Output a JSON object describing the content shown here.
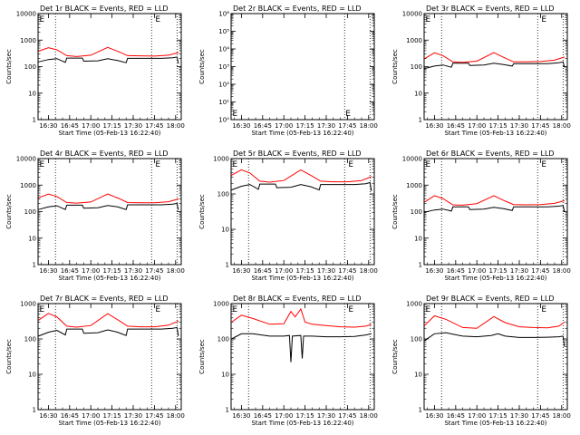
{
  "figure": {
    "xlabel": "Start Time (05-Feb-13 16:22:40)",
    "ylabel": "Counts/sec",
    "x_tick_labels": [
      "16:30",
      "16:45",
      "17:00",
      "17:15",
      "17:30",
      "17:45",
      "18:00"
    ],
    "colors": {
      "events": "#000000",
      "lld": "#ff0000",
      "frame": "#000000"
    }
  },
  "chart_data": [
    {
      "type": "line",
      "title": "Det 1r BLACK = Events, RED = LLD",
      "xlim": [
        "16:22:40",
        "18:04:00"
      ],
      "y_scale": "log",
      "ylim": [
        1,
        10000
      ],
      "y_tick_labels": [
        "1",
        "10",
        "100",
        "1000",
        "10000"
      ],
      "vlines": [
        "16:35",
        "17:43",
        "18:01"
      ],
      "markers": [
        {
          "x": "16:23",
          "label": "E"
        },
        {
          "x": "17:45",
          "label": "E"
        }
      ],
      "series": [
        {
          "name": "Events",
          "x": [
            "16:23",
            "16:30",
            "16:36",
            "16:42",
            "16:43",
            "16:54",
            "16:55",
            "17:05",
            "17:12",
            "17:19",
            "17:25",
            "17:26",
            "17:40",
            "17:50",
            "17:58",
            "18:01",
            "18:02"
          ],
          "values": [
            150,
            185,
            200,
            145,
            210,
            210,
            160,
            165,
            200,
            170,
            140,
            205,
            205,
            205,
            215,
            230,
            130
          ]
        },
        {
          "name": "LLD",
          "x": [
            "16:23",
            "16:30",
            "16:36",
            "16:43",
            "16:50",
            "17:00",
            "17:12",
            "17:20",
            "17:26",
            "17:35",
            "17:45",
            "17:55",
            "18:02"
          ],
          "values": [
            380,
            520,
            430,
            260,
            240,
            270,
            530,
            360,
            260,
            255,
            250,
            270,
            340
          ]
        }
      ]
    },
    {
      "type": "line",
      "title": "Det 2r BLACK = Events, RED = LLD",
      "xlim": [
        "16:22:40",
        "18:04:00"
      ],
      "y_scale": "log",
      "ylim": [
        1,
        1000000
      ],
      "y_tick_labels": [
        "10⁰",
        "10¹",
        "10²",
        "10³",
        "10⁴",
        "10⁵",
        "10⁶"
      ],
      "vlines": [
        "17:43",
        "18:01"
      ],
      "markers": [
        {
          "x": "16:23",
          "label": "E"
        },
        {
          "x": "17:43",
          "label": "E"
        }
      ],
      "series": []
    },
    {
      "type": "line",
      "title": "Det 3r BLACK = Events, RED = LLD",
      "xlim": [
        "16:22:40",
        "18:04:00"
      ],
      "y_scale": "log",
      "ylim": [
        1,
        10000
      ],
      "y_tick_labels": [
        "1",
        "10",
        "100",
        "1000",
        "10000"
      ],
      "vlines": [
        "16:35",
        "17:43",
        "18:01"
      ],
      "markers": [
        {
          "x": "16:23",
          "label": "E"
        },
        {
          "x": "17:45",
          "label": "E"
        }
      ],
      "series": [
        {
          "name": "Events",
          "x": [
            "16:23",
            "16:30",
            "16:36",
            "16:42",
            "16:43",
            "16:54",
            "16:55",
            "17:05",
            "17:12",
            "17:19",
            "17:25",
            "17:26",
            "17:40",
            "17:50",
            "17:58",
            "18:01",
            "18:02"
          ],
          "values": [
            85,
            105,
            115,
            95,
            135,
            135,
            110,
            115,
            135,
            120,
            105,
            130,
            130,
            130,
            140,
            150,
            95
          ]
        },
        {
          "name": "LLD",
          "x": [
            "16:23",
            "16:30",
            "16:36",
            "16:43",
            "16:50",
            "17:00",
            "17:12",
            "17:20",
            "17:26",
            "17:35",
            "17:45",
            "17:55",
            "18:02"
          ],
          "values": [
            200,
            330,
            260,
            150,
            145,
            160,
            340,
            210,
            150,
            150,
            155,
            175,
            230
          ]
        }
      ]
    },
    {
      "type": "line",
      "title": "Det 4r BLACK = Events, RED = LLD",
      "xlim": [
        "16:22:40",
        "18:04:00"
      ],
      "y_scale": "log",
      "ylim": [
        1,
        10000
      ],
      "y_tick_labels": [
        "1",
        "10",
        "100",
        "1000",
        "10000"
      ],
      "vlines": [
        "16:35",
        "17:43",
        "18:01"
      ],
      "markers": [
        {
          "x": "16:23",
          "label": "E"
        },
        {
          "x": "17:45",
          "label": "E"
        }
      ],
      "series": [
        {
          "name": "Events",
          "x": [
            "16:23",
            "16:30",
            "16:36",
            "16:42",
            "16:43",
            "16:54",
            "16:55",
            "17:05",
            "17:12",
            "17:19",
            "17:25",
            "17:26",
            "17:40",
            "17:50",
            "17:58",
            "18:01",
            "18:02"
          ],
          "values": [
            120,
            150,
            165,
            120,
            175,
            175,
            135,
            140,
            170,
            150,
            120,
            180,
            180,
            180,
            190,
            205,
            115
          ]
        },
        {
          "name": "LLD",
          "x": [
            "16:23",
            "16:30",
            "16:36",
            "16:43",
            "16:50",
            "17:00",
            "17:12",
            "17:20",
            "17:26",
            "17:35",
            "17:45",
            "17:55",
            "18:02"
          ],
          "values": [
            330,
            460,
            370,
            220,
            210,
            230,
            460,
            310,
            220,
            215,
            215,
            235,
            300
          ]
        }
      ]
    },
    {
      "type": "line",
      "title": "Det 5r BLACK = Events, RED = LLD",
      "xlim": [
        "16:22:40",
        "18:04:00"
      ],
      "y_scale": "log",
      "ylim": [
        1,
        1000
      ],
      "y_tick_labels": [
        "1",
        "10",
        "100",
        "1000"
      ],
      "vlines": [
        "16:35",
        "17:43",
        "18:01"
      ],
      "markers": [
        {
          "x": "16:23",
          "label": "E"
        },
        {
          "x": "17:45",
          "label": "E"
        }
      ],
      "series": [
        {
          "name": "Events",
          "x": [
            "16:23",
            "16:30",
            "16:36",
            "16:42",
            "16:43",
            "16:54",
            "16:55",
            "17:05",
            "17:12",
            "17:19",
            "17:25",
            "17:26",
            "17:40",
            "17:50",
            "17:58",
            "18:01",
            "18:02"
          ],
          "values": [
            130,
            165,
            185,
            135,
            190,
            190,
            150,
            155,
            185,
            160,
            130,
            185,
            185,
            185,
            195,
            210,
            120
          ]
        },
        {
          "name": "LLD",
          "x": [
            "16:23",
            "16:30",
            "16:36",
            "16:43",
            "16:50",
            "17:00",
            "17:12",
            "17:20",
            "17:26",
            "17:35",
            "17:45",
            "17:55",
            "18:02"
          ],
          "values": [
            340,
            480,
            390,
            230,
            215,
            240,
            480,
            320,
            230,
            220,
            220,
            240,
            310
          ]
        }
      ]
    },
    {
      "type": "line",
      "title": "Det 6r BLACK = Events, RED = LLD",
      "xlim": [
        "16:22:40",
        "18:04:00"
      ],
      "y_scale": "log",
      "ylim": [
        1,
        10000
      ],
      "y_tick_labels": [
        "1",
        "10",
        "100",
        "1000",
        "10000"
      ],
      "vlines": [
        "16:35",
        "17:43",
        "18:01"
      ],
      "markers": [
        {
          "x": "16:23",
          "label": "E"
        },
        {
          "x": "17:45",
          "label": "E"
        }
      ],
      "series": [
        {
          "name": "Events",
          "x": [
            "16:23",
            "16:30",
            "16:36",
            "16:42",
            "16:43",
            "16:54",
            "16:55",
            "17:05",
            "17:12",
            "17:19",
            "17:25",
            "17:26",
            "17:40",
            "17:50",
            "17:58",
            "18:01",
            "18:02"
          ],
          "values": [
            95,
            115,
            125,
            105,
            150,
            150,
            120,
            125,
            145,
            130,
            110,
            150,
            150,
            150,
            160,
            170,
            100
          ]
        },
        {
          "name": "LLD",
          "x": [
            "16:23",
            "16:30",
            "16:36",
            "16:43",
            "16:50",
            "17:00",
            "17:12",
            "17:20",
            "17:26",
            "17:35",
            "17:45",
            "17:55",
            "18:02"
          ],
          "values": [
            230,
            400,
            310,
            180,
            175,
            200,
            400,
            250,
            185,
            180,
            185,
            205,
            260
          ]
        }
      ]
    },
    {
      "type": "line",
      "title": "Det 7r BLACK = Events, RED = LLD",
      "xlim": [
        "16:22:40",
        "18:04:00"
      ],
      "y_scale": "log",
      "ylim": [
        1,
        1000
      ],
      "y_tick_labels": [
        "1",
        "10",
        "100",
        "1000"
      ],
      "vlines": [
        "16:35",
        "17:43",
        "18:01"
      ],
      "markers": [
        {
          "x": "16:23",
          "label": "E"
        },
        {
          "x": "17:45",
          "label": "E"
        }
      ],
      "series": [
        {
          "name": "Events",
          "x": [
            "16:23",
            "16:30",
            "16:36",
            "16:42",
            "16:43",
            "16:54",
            "16:55",
            "17:05",
            "17:12",
            "17:19",
            "17:25",
            "17:26",
            "17:40",
            "17:50",
            "17:58",
            "18:01",
            "18:02"
          ],
          "values": [
            120,
            155,
            175,
            130,
            190,
            190,
            145,
            150,
            180,
            155,
            125,
            190,
            190,
            190,
            200,
            210,
            120
          ]
        },
        {
          "name": "LLD",
          "x": [
            "16:23",
            "16:30",
            "16:36",
            "16:43",
            "16:50",
            "17:00",
            "17:12",
            "17:20",
            "17:26",
            "17:35",
            "17:45",
            "17:55",
            "18:02"
          ],
          "values": [
            340,
            530,
            420,
            230,
            215,
            240,
            520,
            330,
            230,
            220,
            220,
            245,
            320
          ]
        }
      ]
    },
    {
      "type": "line",
      "title": "Det 8r BLACK = Events, RED = LLD",
      "xlim": [
        "16:22:40",
        "18:04:00"
      ],
      "y_scale": "log",
      "ylim": [
        1,
        1000
      ],
      "y_tick_labels": [
        "1",
        "10",
        "100",
        "1000"
      ],
      "vlines": [
        "16:35",
        "17:43",
        "18:01"
      ],
      "markers": [
        {
          "x": "16:23",
          "label": "E"
        },
        {
          "x": "17:45",
          "label": "E"
        }
      ],
      "series": [
        {
          "name": "Events",
          "x": [
            "16:23",
            "16:30",
            "16:38",
            "16:50",
            "17:00",
            "17:04",
            "17:05",
            "17:06",
            "17:12",
            "17:13",
            "17:14",
            "17:20",
            "17:30",
            "17:40",
            "17:50",
            "17:58",
            "18:02"
          ],
          "values": [
            100,
            140,
            140,
            120,
            120,
            125,
            22,
            120,
            125,
            28,
            120,
            120,
            115,
            115,
            118,
            130,
            140
          ]
        },
        {
          "name": "LLD",
          "x": [
            "16:23",
            "16:30",
            "16:38",
            "16:50",
            "17:00",
            "17:05",
            "17:08",
            "17:12",
            "17:15",
            "17:20",
            "17:30",
            "17:40",
            "17:50",
            "17:58",
            "18:02"
          ],
          "values": [
            300,
            470,
            380,
            260,
            270,
            600,
            420,
            700,
            300,
            260,
            240,
            220,
            215,
            230,
            260
          ]
        }
      ]
    },
    {
      "type": "line",
      "title": "Det 9r BLACK = Events, RED = LLD",
      "xlim": [
        "16:22:40",
        "18:04:00"
      ],
      "y_scale": "log",
      "ylim": [
        1,
        1000
      ],
      "y_tick_labels": [
        "1",
        "10",
        "100",
        "1000"
      ],
      "vlines": [
        "16:35",
        "17:43",
        "18:01"
      ],
      "markers": [
        {
          "x": "16:23",
          "label": "E"
        },
        {
          "x": "17:45",
          "label": "E"
        }
      ],
      "series": [
        {
          "name": "Events",
          "x": [
            "16:23",
            "16:30",
            "16:38",
            "16:50",
            "17:00",
            "17:10",
            "17:15",
            "17:20",
            "17:30",
            "17:40",
            "17:50",
            "17:58",
            "18:01",
            "18:02"
          ],
          "values": [
            90,
            140,
            150,
            120,
            115,
            125,
            140,
            120,
            110,
            110,
            112,
            115,
            120,
            60
          ]
        },
        {
          "name": "LLD",
          "x": [
            "16:23",
            "16:30",
            "16:38",
            "16:50",
            "17:00",
            "17:12",
            "17:20",
            "17:30",
            "17:40",
            "17:50",
            "17:58",
            "18:02"
          ],
          "values": [
            240,
            450,
            360,
            210,
            200,
            430,
            290,
            220,
            210,
            205,
            230,
            300
          ]
        }
      ]
    }
  ]
}
